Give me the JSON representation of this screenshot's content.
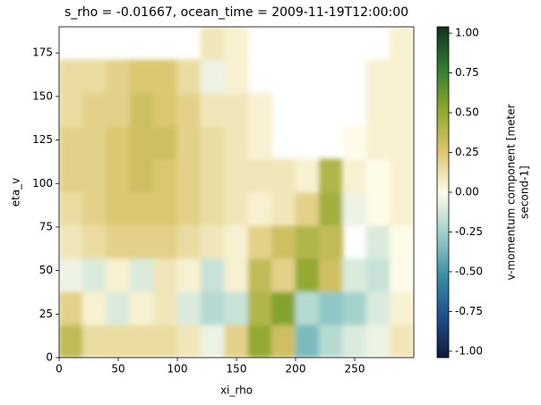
{
  "chart_data": {
    "type": "heatmap",
    "title": "s_rho = -0.01667, ocean_time = 2009-11-19T12:00:00",
    "xlabel": "xi_rho",
    "ylabel": "eta_v",
    "colorbar_label": [
      "v-momentum component [meter",
      "second-1]"
    ],
    "x_edges": [
      0,
      20,
      40,
      60,
      80,
      100,
      120,
      140,
      160,
      180,
      200,
      220,
      240,
      260,
      280,
      300
    ],
    "y_edges": [
      0,
      19,
      38,
      57,
      76,
      95,
      114,
      133,
      152,
      171,
      190
    ],
    "values": [
      [
        0.35,
        0.15,
        0.15,
        0.15,
        0.15,
        0.1,
        -0.05,
        0.2,
        0.5,
        0.3,
        -0.35,
        -0.2,
        -0.1,
        -0.05,
        0.1
      ],
      [
        0.2,
        0.05,
        -0.1,
        0.05,
        0.1,
        -0.1,
        -0.2,
        -0.15,
        0.4,
        0.55,
        -0.2,
        -0.3,
        -0.25,
        -0.1,
        0.05
      ],
      [
        -0.05,
        -0.1,
        0.05,
        -0.1,
        0.1,
        0.05,
        -0.15,
        0.05,
        0.35,
        0.2,
        0.5,
        0.3,
        -0.1,
        -0.15,
        0.0
      ],
      [
        0.1,
        0.15,
        0.2,
        0.2,
        0.2,
        0.15,
        0.1,
        0.05,
        0.2,
        0.3,
        0.4,
        0.35,
        null,
        -0.1,
        0.0
      ],
      [
        0.15,
        0.2,
        0.25,
        0.25,
        0.25,
        0.2,
        0.15,
        0.1,
        0.05,
        0.1,
        0.2,
        0.45,
        -0.05,
        0.0,
        0.05
      ],
      [
        0.2,
        0.2,
        0.25,
        0.3,
        0.25,
        0.2,
        0.15,
        0.1,
        0.1,
        0.1,
        0.05,
        0.4,
        0.05,
        0.0,
        0.05
      ],
      [
        0.2,
        0.2,
        0.25,
        0.3,
        0.3,
        0.2,
        0.15,
        0.1,
        0.05,
        null,
        null,
        null,
        0.0,
        0.05,
        0.05
      ],
      [
        0.15,
        0.2,
        0.2,
        0.3,
        0.25,
        0.2,
        0.1,
        0.1,
        0.05,
        null,
        null,
        null,
        null,
        0.05,
        0.05
      ],
      [
        0.15,
        0.15,
        0.2,
        0.25,
        0.25,
        0.15,
        -0.05,
        0.05,
        null,
        null,
        null,
        null,
        null,
        0.05,
        0.05
      ],
      [
        null,
        null,
        null,
        null,
        null,
        null,
        0.1,
        0.05,
        null,
        null,
        null,
        null,
        null,
        null,
        0.05
      ]
    ],
    "xlim": [
      0,
      300
    ],
    "ylim": [
      0,
      190
    ],
    "xticks": [
      0,
      50,
      100,
      150,
      200,
      250
    ],
    "yticks": [
      0,
      25,
      50,
      75,
      100,
      125,
      150,
      175
    ],
    "clim": [
      -1.04,
      1.04
    ],
    "cticks": [
      {
        "value": -1,
        "label": "-1.00"
      },
      {
        "value": -0.75,
        "label": "-0.75"
      },
      {
        "value": -0.5,
        "label": "-0.50"
      },
      {
        "value": -0.25,
        "label": "-0.25"
      },
      {
        "value": 0,
        "label": "0.00"
      },
      {
        "value": 0.25,
        "label": "0.25"
      },
      {
        "value": 0.5,
        "label": "0.50"
      },
      {
        "value": 0.75,
        "label": "0.75"
      },
      {
        "value": 1,
        "label": "1.00"
      }
    ],
    "colormap": [
      "#111a3d",
      "#1e4f8f",
      "#3a8fa3",
      "#9fd0cb",
      "#fffbe9",
      "#dac56c",
      "#8ea72c",
      "#2f7d33",
      "#13301b"
    ]
  }
}
